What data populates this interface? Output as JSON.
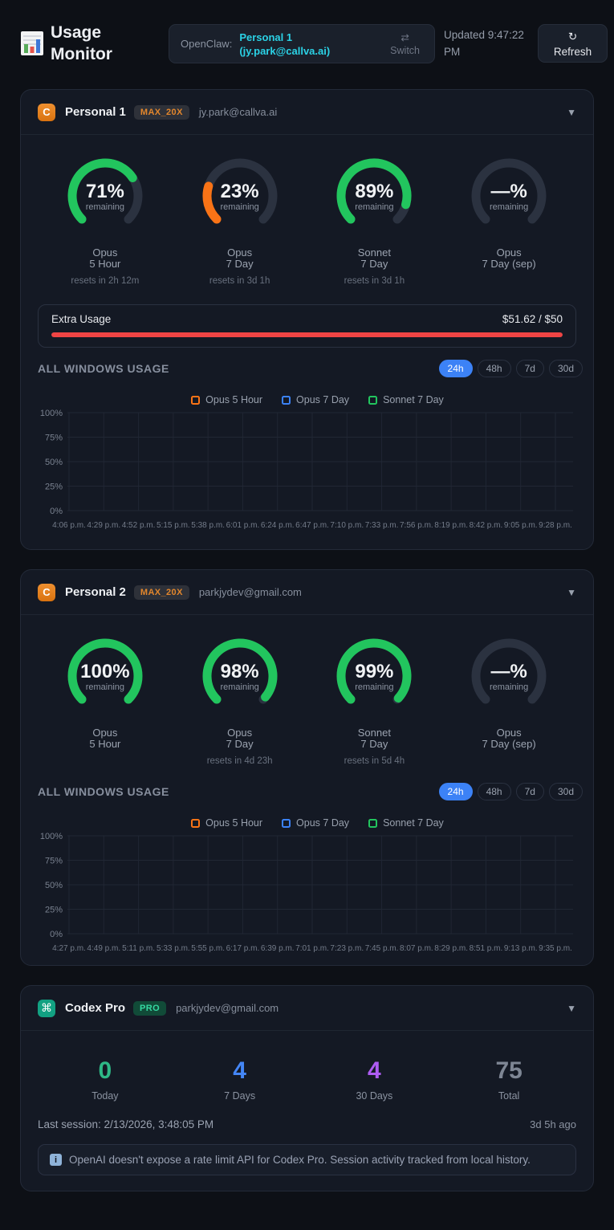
{
  "header": {
    "title": "Usage Monitor",
    "provider_label": "OpenClaw:",
    "active_account": "Personal 1 (jy.park@callva.ai)",
    "switch_icon": "⇄",
    "switch_label": "Switch",
    "updated": "Updated 9:47:22 PM",
    "refresh_icon": "↻",
    "refresh_label": "Refresh"
  },
  "accounts": [
    {
      "icon_letter": "C",
      "name": "Personal 1",
      "plan_badge": "MAX_20X",
      "email": "jy.park@callva.ai",
      "collapse_icon": "▼",
      "gauges": [
        {
          "percent": 71,
          "display": "71%",
          "sublabel": "remaining",
          "color": "#22c55e",
          "line1": "Opus",
          "line2": "5 Hour",
          "resets": "resets in 2h 12m"
        },
        {
          "percent": 23,
          "display": "23%",
          "sublabel": "remaining",
          "color": "#f97316",
          "line1": "Opus",
          "line2": "7 Day",
          "resets": "resets in 3d 1h"
        },
        {
          "percent": 89,
          "display": "89%",
          "sublabel": "remaining",
          "color": "#22c55e",
          "line1": "Sonnet",
          "line2": "7 Day",
          "resets": "resets in 3d 1h"
        },
        {
          "percent": null,
          "display": "—%",
          "sublabel": "remaining",
          "color": null,
          "line1": "Opus",
          "line2": "7 Day (sep)",
          "resets": ""
        }
      ],
      "extra_usage": {
        "label": "Extra Usage",
        "value": "$51.62 / $50",
        "percent_filled": 100,
        "bar_color": "#ef4444"
      },
      "usage": {
        "title": "ALL WINDOWS USAGE",
        "ranges": [
          "24h",
          "48h",
          "7d",
          "30d"
        ],
        "active_range": "24h",
        "legend": [
          {
            "label": "Opus 5 Hour",
            "color": "#f97316"
          },
          {
            "label": "Opus 7 Day",
            "color": "#3b82f6"
          },
          {
            "label": "Sonnet 7 Day",
            "color": "#22c55e"
          }
        ],
        "chart": {
          "type": "line",
          "y_ticks": [
            "100%",
            "75%",
            "50%",
            "25%",
            "0%"
          ],
          "x_ticks": [
            "4:06 p.m.",
            "4:29 p.m.",
            "4:52 p.m.",
            "5:15 p.m.",
            "5:38 p.m.",
            "6:01 p.m.",
            "6:24 p.m.",
            "6:47 p.m.",
            "7:10 p.m.",
            "7:33 p.m.",
            "7:56 p.m.",
            "8:19 p.m.",
            "8:42 p.m.",
            "9:05 p.m.",
            "9:28 p.m."
          ],
          "series": []
        }
      }
    },
    {
      "icon_letter": "C",
      "name": "Personal 2",
      "plan_badge": "MAX_20X",
      "email": "parkjydev@gmail.com",
      "collapse_icon": "▼",
      "gauges": [
        {
          "percent": 100,
          "display": "100%",
          "sublabel": "remaining",
          "color": "#22c55e",
          "line1": "Opus",
          "line2": "5 Hour",
          "resets": ""
        },
        {
          "percent": 98,
          "display": "98%",
          "sublabel": "remaining",
          "color": "#22c55e",
          "line1": "Opus",
          "line2": "7 Day",
          "resets": "resets in 4d 23h"
        },
        {
          "percent": 99,
          "display": "99%",
          "sublabel": "remaining",
          "color": "#22c55e",
          "line1": "Sonnet",
          "line2": "7 Day",
          "resets": "resets in 5d 4h"
        },
        {
          "percent": null,
          "display": "—%",
          "sublabel": "remaining",
          "color": null,
          "line1": "Opus",
          "line2": "7 Day (sep)",
          "resets": ""
        }
      ],
      "usage": {
        "title": "ALL WINDOWS USAGE",
        "ranges": [
          "24h",
          "48h",
          "7d",
          "30d"
        ],
        "active_range": "24h",
        "legend": [
          {
            "label": "Opus 5 Hour",
            "color": "#f97316"
          },
          {
            "label": "Opus 7 Day",
            "color": "#3b82f6"
          },
          {
            "label": "Sonnet 7 Day",
            "color": "#22c55e"
          }
        ],
        "chart": {
          "type": "line",
          "y_ticks": [
            "100%",
            "75%",
            "50%",
            "25%",
            "0%"
          ],
          "x_ticks": [
            "4:27 p.m.",
            "4:49 p.m.",
            "5:11 p.m.",
            "5:33 p.m.",
            "5:55 p.m.",
            "6:17 p.m.",
            "6:39 p.m.",
            "7:01 p.m.",
            "7:23 p.m.",
            "7:45 p.m.",
            "8:07 p.m.",
            "8:29 p.m.",
            "8:51 p.m.",
            "9:13 p.m.",
            "9:35 p.m."
          ],
          "series": []
        }
      }
    }
  ],
  "codex": {
    "icon_glyph": "⌘",
    "name": "Codex Pro",
    "plan_badge": "PRO",
    "email": "parkjydev@gmail.com",
    "collapse_icon": "▼",
    "stats": [
      {
        "value": "0",
        "label": "Today",
        "color": "#2eb886"
      },
      {
        "value": "4",
        "label": "7 Days",
        "color": "#4486f5"
      },
      {
        "value": "4",
        "label": "30 Days",
        "color": "#ae5cf2"
      },
      {
        "value": "75",
        "label": "Total",
        "color": "#7e8694"
      }
    ],
    "last_session_label": "Last session: 2/13/2026, 3:48:05 PM",
    "last_session_ago": "3d 5h ago",
    "info_icon": "i",
    "info_note": "OpenAI doesn't expose a rate limit API for Codex Pro. Session activity tracked from local history."
  }
}
